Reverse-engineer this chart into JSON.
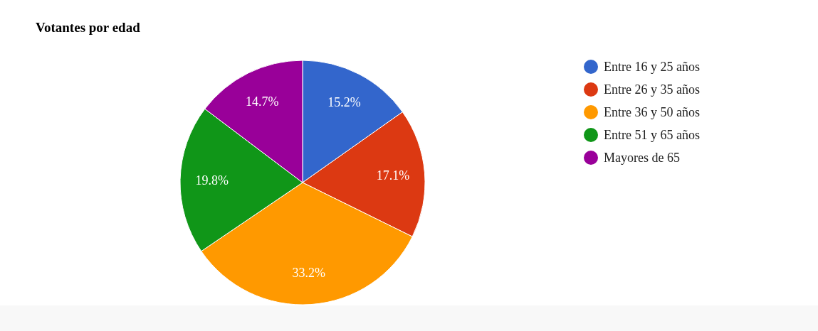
{
  "chart_data": {
    "type": "pie",
    "title": "Votantes por edad",
    "categories": [
      "Entre 16 y 25 años",
      "Entre 26 y 35 años",
      "Entre 36 y 50 años",
      "Entre 51 y 65 años",
      "Mayores de 65"
    ],
    "values": [
      15.2,
      17.1,
      33.2,
      19.8,
      14.7
    ],
    "colors": [
      "#3366cc",
      "#dc3912",
      "#ff9900",
      "#109618",
      "#990099"
    ],
    "value_labels": [
      "15.2%",
      "17.1%",
      "33.2%",
      "19.8%",
      "14.7%"
    ],
    "legend": "right"
  }
}
